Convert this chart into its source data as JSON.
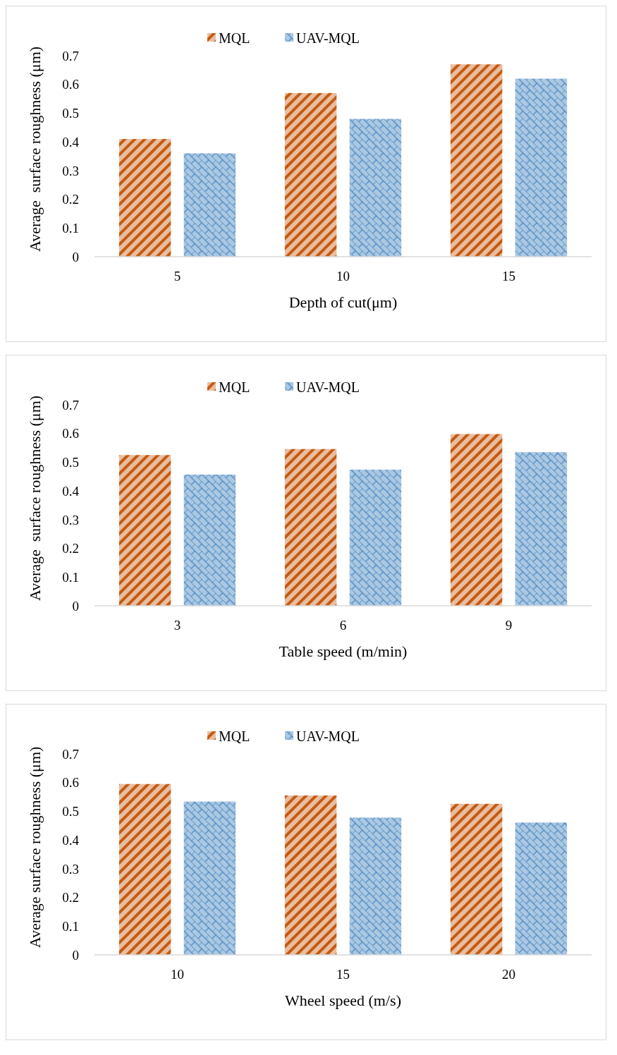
{
  "chart_data": [
    {
      "type": "bar",
      "xlabel": "Depth of cut(μm)",
      "ylabel": "Average  surface roughness (μm)",
      "categories": [
        "5",
        "10",
        "15"
      ],
      "ylim": [
        0,
        0.7
      ],
      "yticks": [
        0,
        0.1,
        0.2,
        0.3,
        0.4,
        0.5,
        0.6,
        0.7
      ],
      "grid": false,
      "legend": "top",
      "series": [
        {
          "name": "MQL",
          "color": "#c55a11",
          "values": [
            0.41,
            0.57,
            0.67
          ]
        },
        {
          "name": "UAV-MQL",
          "color": "#2e75b6",
          "values": [
            0.36,
            0.48,
            0.62
          ]
        }
      ]
    },
    {
      "type": "bar",
      "xlabel": "Table speed (m/min)",
      "ylabel": "Average  surface roughness (μm)",
      "categories": [
        "3",
        "6",
        "9"
      ],
      "ylim": [
        0,
        0.7
      ],
      "yticks": [
        0,
        0.1,
        0.2,
        0.3,
        0.4,
        0.5,
        0.6,
        0.7
      ],
      "grid": false,
      "legend": "top",
      "series": [
        {
          "name": "MQL",
          "color": "#c55a11",
          "values": [
            0.525,
            0.546,
            0.598
          ]
        },
        {
          "name": "UAV-MQL",
          "color": "#2e75b6",
          "values": [
            0.457,
            0.474,
            0.535
          ]
        }
      ]
    },
    {
      "type": "bar",
      "xlabel": "Wheel speed (m/s)",
      "ylabel": "Average surface roughness (μm)",
      "categories": [
        "10",
        "15",
        "20"
      ],
      "ylim": [
        0,
        0.7
      ],
      "yticks": [
        0,
        0.1,
        0.2,
        0.3,
        0.4,
        0.5,
        0.6,
        0.7
      ],
      "grid": false,
      "legend": "top",
      "series": [
        {
          "name": "MQL",
          "color": "#c55a11",
          "values": [
            0.595,
            0.555,
            0.526
          ]
        },
        {
          "name": "UAV-MQL",
          "color": "#2e75b6",
          "values": [
            0.534,
            0.478,
            0.461
          ]
        }
      ]
    }
  ]
}
